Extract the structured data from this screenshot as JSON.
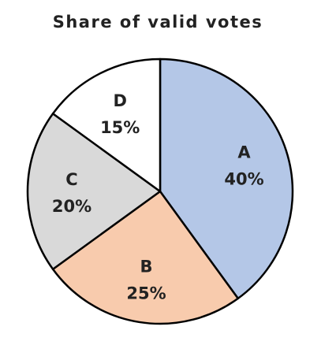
{
  "chart_data": {
    "type": "pie",
    "title": "Share of valid votes",
    "categories": [
      "A",
      "B",
      "C",
      "D"
    ],
    "values": [
      40,
      25,
      20,
      15
    ],
    "value_labels": [
      "40%",
      "25%",
      "20%",
      "15%"
    ],
    "colors": [
      "#b4c7e7",
      "#f8cbad",
      "#d9d9d9",
      "#ffffff"
    ],
    "outline_color": "#000000",
    "start_at": "top",
    "direction": "clockwise"
  }
}
